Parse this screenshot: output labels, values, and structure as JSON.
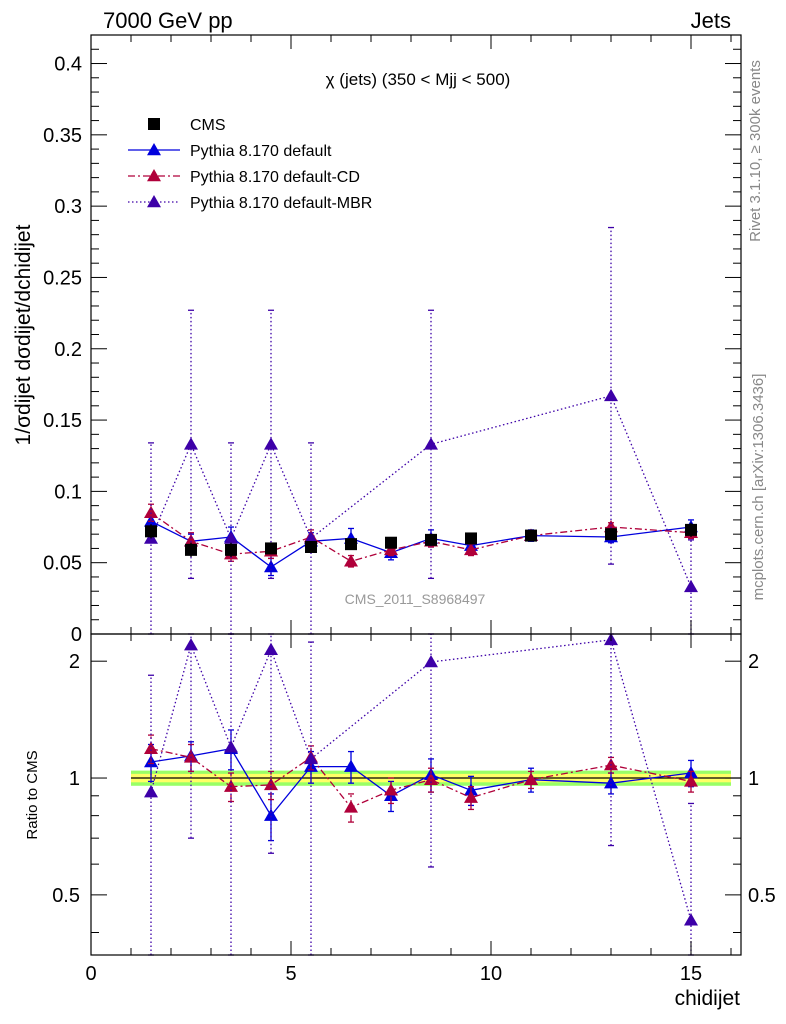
{
  "header": {
    "left": "7000 GeV pp",
    "right": "Jets"
  },
  "side_labels": {
    "rivet": "Rivet 3.1.10, ≥ 300k events",
    "source": "mcplots.cern.ch [arXiv:1306.3436]"
  },
  "colors": {
    "cms": "#000000",
    "default": "#0000dd",
    "cd": "#b0003a",
    "mbr": "#3d00a8",
    "band_inner": "#ffff66",
    "band_outer": "#99ff66"
  },
  "chart_data": [
    {
      "type": "scatter",
      "panel": "main",
      "title": "χ (jets) (350 < Mjj <  500)",
      "watermark": "CMS_2011_S8968497",
      "ylabel": "1/σdijet dσdijet/dchidijet",
      "ylim": [
        0,
        0.42
      ],
      "xlim": [
        0,
        16.25
      ],
      "yticks": [
        "0.05",
        "0.1",
        "0.15",
        "0.2",
        "0.25",
        "0.3",
        "0.35",
        "0.4"
      ],
      "legend_position": "top-left",
      "series": [
        {
          "name": "CMS",
          "key": "cms",
          "style": "marker",
          "x": [
            1.5,
            2.5,
            3.5,
            4.5,
            5.5,
            6.5,
            7.5,
            8.5,
            9.5,
            11,
            13,
            15
          ],
          "y": [
            0.072,
            0.059,
            0.059,
            0.06,
            0.061,
            0.063,
            0.064,
            0.066,
            0.067,
            0.069,
            0.07,
            0.073
          ],
          "err": [
            0.005,
            0.005,
            0.005,
            0.004,
            0.004,
            0.004,
            0.004,
            0.004,
            0.004,
            0.004,
            0.004,
            0.005
          ]
        },
        {
          "name": "Pythia 8.170 default",
          "key": "default",
          "style": "solid",
          "x": [
            1.5,
            2.5,
            3.5,
            4.5,
            5.5,
            6.5,
            7.5,
            8.5,
            9.5,
            11,
            13,
            15
          ],
          "y": [
            0.079,
            0.065,
            0.068,
            0.047,
            0.065,
            0.067,
            0.057,
            0.067,
            0.062,
            0.069,
            0.068,
            0.075
          ],
          "err": [
            0.006,
            0.005,
            0.007,
            0.006,
            0.006,
            0.007,
            0.005,
            0.006,
            0.005,
            0.004,
            0.004,
            0.005
          ]
        },
        {
          "name": "Pythia 8.170 default-CD",
          "key": "cd",
          "style": "dashdot",
          "x": [
            1.5,
            2.5,
            3.5,
            4.5,
            5.5,
            6.5,
            7.5,
            8.5,
            9.5,
            11,
            13,
            15
          ],
          "y": [
            0.085,
            0.065,
            0.056,
            0.058,
            0.068,
            0.051,
            0.059,
            0.065,
            0.059,
            0.069,
            0.075,
            0.071
          ],
          "err": [
            0.006,
            0.006,
            0.005,
            0.005,
            0.005,
            0.004,
            0.004,
            0.004,
            0.004,
            0.003,
            0.003,
            0.004
          ]
        },
        {
          "name": "Pythia 8.170 default-MBR",
          "key": "mbr",
          "style": "dotted",
          "x": [
            1.5,
            2.5,
            3.5,
            4.5,
            5.5,
            6.5,
            7.5,
            8.5,
            9.5,
            11,
            13,
            15
          ],
          "y": [
            0.067,
            0.133,
            0.067,
            0.133,
            0.067,
            null,
            null,
            0.133,
            null,
            null,
            0.167,
            0.033
          ],
          "err": [
            0.067,
            0.094,
            0.067,
            0.094,
            0.067,
            null,
            null,
            0.094,
            null,
            null,
            0.118,
            0.033
          ]
        }
      ]
    },
    {
      "type": "scatter",
      "panel": "ratio",
      "ylabel": "Ratio to CMS",
      "xlabel": "chidijet",
      "ylim": [
        0.35,
        2.35
      ],
      "yscale": "log",
      "xlim": [
        0,
        16.25
      ],
      "xticks": [
        "0",
        "5",
        "10",
        "15"
      ],
      "yticks": [
        "0.5",
        "1",
        "2"
      ],
      "band": {
        "x": [
          1,
          16
        ],
        "inner": [
          0.975,
          1.025
        ],
        "outer": [
          0.955,
          1.045
        ]
      },
      "series": [
        {
          "name": "Pythia 8.170 default",
          "key": "default",
          "style": "solid",
          "x": [
            1.5,
            2.5,
            3.5,
            4.5,
            5.5,
            6.5,
            7.5,
            8.5,
            9.5,
            11,
            13,
            15
          ],
          "y": [
            1.1,
            1.14,
            1.19,
            0.8,
            1.07,
            1.07,
            0.9,
            1.02,
            0.93,
            0.99,
            0.97,
            1.03
          ],
          "err": [
            0.12,
            0.1,
            0.14,
            0.11,
            0.1,
            0.1,
            0.08,
            0.1,
            0.08,
            0.07,
            0.06,
            0.08
          ]
        },
        {
          "name": "Pythia 8.170 default-CD",
          "key": "cd",
          "style": "dashdot",
          "x": [
            1.5,
            2.5,
            3.5,
            4.5,
            5.5,
            6.5,
            7.5,
            8.5,
            9.5,
            11,
            13,
            15
          ],
          "y": [
            1.19,
            1.13,
            0.95,
            0.96,
            1.13,
            0.84,
            0.93,
            0.99,
            0.89,
            0.99,
            1.08,
            0.98
          ],
          "err": [
            0.1,
            0.09,
            0.08,
            0.08,
            0.08,
            0.07,
            0.07,
            0.07,
            0.06,
            0.05,
            0.05,
            0.06
          ]
        },
        {
          "name": "Pythia 8.170 default-MBR",
          "key": "mbr",
          "style": "dotted",
          "x": [
            1.5,
            2.5,
            3.5,
            4.5,
            5.5,
            6.5,
            7.5,
            8.5,
            9.5,
            11,
            13,
            15
          ],
          "y": [
            0.92,
            2.2,
            1.2,
            2.14,
            1.12,
            null,
            null,
            1.99,
            null,
            null,
            2.27,
            0.43
          ],
          "err": [
            0.92,
            1.5,
            1.2,
            1.5,
            1.12,
            null,
            null,
            1.4,
            null,
            null,
            1.6,
            0.43
          ]
        }
      ]
    }
  ]
}
